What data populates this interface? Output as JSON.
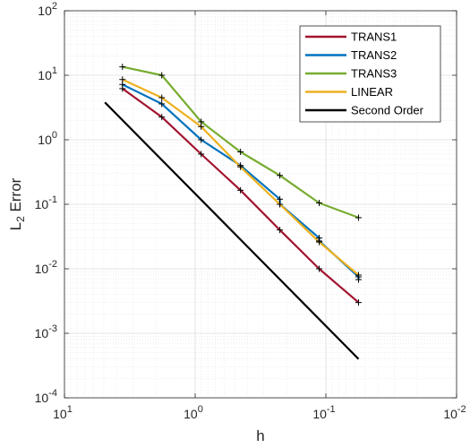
{
  "chart_data": {
    "type": "line",
    "xscale": "log",
    "yscale": "log",
    "x_reversed": true,
    "xlim": [
      10,
      0.01
    ],
    "ylim": [
      0.0001,
      100
    ],
    "xlabel": "h",
    "ylabel_main": "L",
    "ylabel_sub": "2",
    "ylabel_rest": " Error",
    "x_ticks": [
      {
        "value": 10,
        "base": "10",
        "exp": "1"
      },
      {
        "value": 1,
        "base": "10",
        "exp": "0"
      },
      {
        "value": 0.1,
        "base": "10",
        "exp": "-1"
      },
      {
        "value": 0.01,
        "base": "10",
        "exp": "-2"
      }
    ],
    "y_ticks": [
      {
        "value": 0.0001,
        "base": "10",
        "exp": "-4"
      },
      {
        "value": 0.001,
        "base": "10",
        "exp": "-3"
      },
      {
        "value": 0.01,
        "base": "10",
        "exp": "-2"
      },
      {
        "value": 0.1,
        "base": "10",
        "exp": "-1"
      },
      {
        "value": 1,
        "base": "10",
        "exp": "0"
      },
      {
        "value": 10,
        "base": "10",
        "exp": "1"
      },
      {
        "value": 100,
        "base": "10",
        "exp": "2"
      }
    ],
    "grid": true,
    "minor_grid": true,
    "legend_position": "top-right",
    "series": [
      {
        "name": "TRANS1",
        "color": "#A2142F",
        "markers": true,
        "x": [
          3.6,
          1.8,
          0.9,
          0.45,
          0.225,
          0.1125,
          0.05625
        ],
        "y": [
          6.2,
          2.25,
          0.6,
          0.165,
          0.04,
          0.01,
          0.003
        ]
      },
      {
        "name": "TRANS2",
        "color": "#0072BD",
        "markers": true,
        "x": [
          3.6,
          1.8,
          0.9,
          0.45,
          0.225,
          0.225,
          0.1125,
          0.1125,
          0.05625,
          0.05625
        ],
        "y": [
          7.2,
          3.6,
          1.0,
          0.4,
          0.12,
          0.1,
          0.03,
          0.027,
          0.0075,
          0.0068
        ]
      },
      {
        "name": "TRANS3",
        "color": "#77AC30",
        "markers": true,
        "x": [
          3.6,
          1.8,
          0.9,
          0.45,
          0.225,
          0.1125,
          0.05625
        ],
        "y": [
          13.5,
          10.0,
          1.9,
          0.65,
          0.28,
          0.105,
          0.062
        ]
      },
      {
        "name": "LINEAR",
        "color": "#EDB120",
        "markers": true,
        "x": [
          3.6,
          1.8,
          0.9,
          0.45,
          0.225,
          0.1125,
          0.05625
        ],
        "y": [
          8.6,
          4.5,
          1.6,
          0.38,
          0.1,
          0.026,
          0.008
        ]
      },
      {
        "name": "Second Order",
        "color": "#000000",
        "markers": false,
        "x": [
          4.9,
          0.05625
        ],
        "y": [
          3.8,
          0.0004
        ]
      }
    ]
  }
}
